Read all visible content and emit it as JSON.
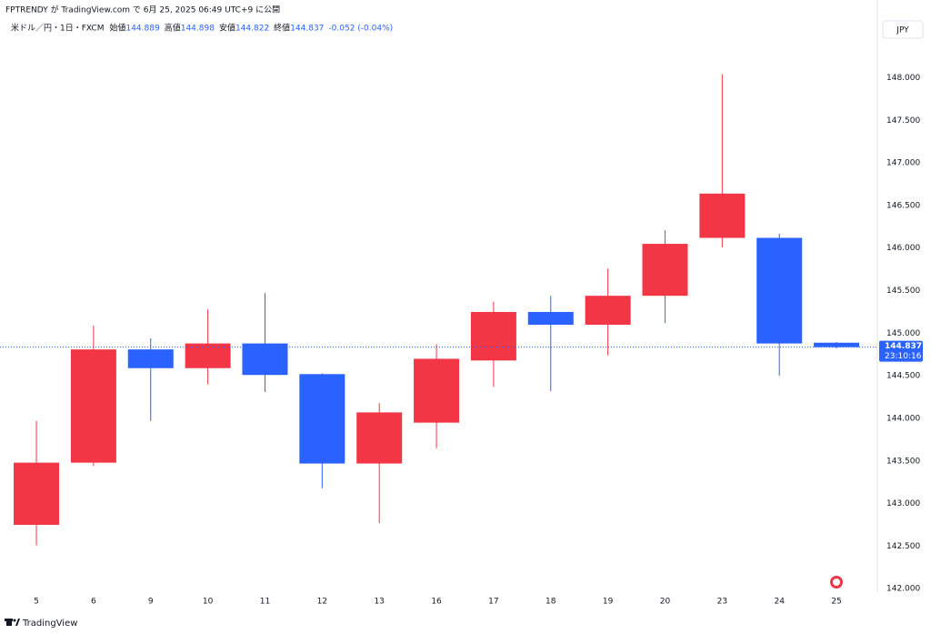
{
  "chart_data": {
    "type": "candlestick",
    "publish_note": "FPTRENDY が TradingView.com で 6月 25, 2025 06:49 UTC+9 に公開",
    "symbol": "米ドル／円・1日・FXCM",
    "legend_labels": [
      "始値",
      "高値",
      "安値",
      "終値"
    ],
    "change_label": "-0.052 (-0.04%)",
    "currency": "JPY",
    "countdown": "23:10:16",
    "footer_brand": "TradingView",
    "categories": [
      "5",
      "6",
      "9",
      "10",
      "11",
      "12",
      "13",
      "16",
      "17",
      "18",
      "19",
      "20",
      "23",
      "24",
      "25"
    ],
    "open": [
      142.75,
      143.48,
      144.81,
      144.59,
      144.88,
      144.52,
      143.47,
      143.95,
      144.68,
      145.25,
      145.1,
      145.44,
      146.12,
      146.12,
      144.889
    ],
    "high": [
      143.97,
      145.09,
      144.94,
      145.28,
      145.47,
      144.53,
      144.18,
      144.87,
      145.37,
      145.44,
      145.76,
      146.21,
      148.04,
      146.17,
      144.898
    ],
    "low": [
      142.51,
      143.44,
      143.97,
      144.4,
      144.31,
      143.18,
      142.77,
      143.65,
      144.37,
      144.32,
      144.74,
      145.12,
      146.01,
      144.5,
      144.822
    ],
    "close": [
      143.48,
      144.81,
      144.59,
      144.88,
      144.51,
      143.47,
      144.07,
      144.7,
      145.25,
      145.1,
      145.44,
      146.05,
      146.64,
      144.88,
      144.837
    ],
    "up_color": "#f23645",
    "down_color": "#2962ff",
    "ylim": [
      141.97,
      148.7
    ],
    "yticks": [
      {
        "value": 142,
        "label": "142.000"
      },
      {
        "value": 142.5,
        "label": "142.500"
      },
      {
        "value": 143,
        "label": "143.000"
      },
      {
        "value": 143.5,
        "label": "143.500"
      },
      {
        "value": 144,
        "label": "144.000"
      },
      {
        "value": 144.5,
        "label": "144.500"
      },
      {
        "value": 145,
        "label": "145.000"
      },
      {
        "value": 145.5,
        "label": "145.500"
      },
      {
        "value": 146,
        "label": "146.000"
      },
      {
        "value": 146.5,
        "label": "146.500"
      },
      {
        "value": 147,
        "label": "147.000"
      },
      {
        "value": 147.5,
        "label": "147.500"
      },
      {
        "value": 148,
        "label": "148.000"
      }
    ],
    "grid": true
  }
}
